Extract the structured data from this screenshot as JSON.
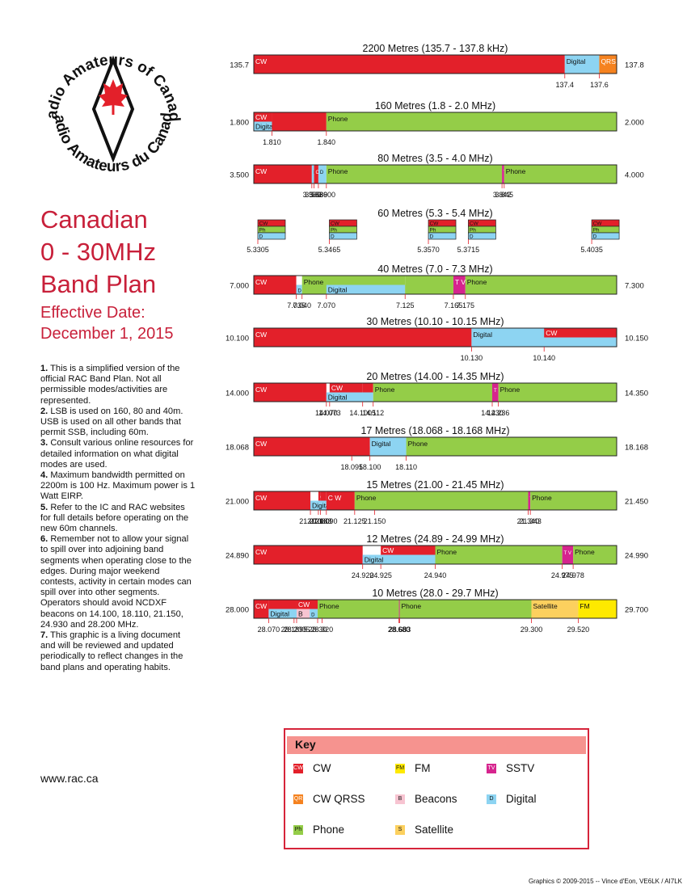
{
  "logo": {
    "top_text": "Radio Amateurs of Canada",
    "bottom_text": "Radio Amateurs du Canada"
  },
  "title_lines": [
    "Canadian",
    "0 - 30MHz",
    "Band Plan"
  ],
  "effective_lines": [
    "Effective Date:",
    "December 1, 2015"
  ],
  "notes": [
    {
      "num": "1.",
      "text": "This is a simplified version of the official RAC Band Plan.  Not all permissible modes/activities are represented."
    },
    {
      "num": "2.",
      "text": "LSB is used on 160, 80 and 40m. USB is used on all other bands that permit SSB, including 60m."
    },
    {
      "num": "3.",
      "text": "Consult various online resources for detailed information on what digital modes are used."
    },
    {
      "num": "4.",
      "text": "Maximum bandwidth permitted on 2200m is 100 Hz.  Maximum power is 1 Watt EIRP."
    },
    {
      "num": "5.",
      "text": "Refer to the IC and RAC websites for full details before operating on the new 60m channels."
    },
    {
      "num": "6.",
      "text": "Remember not to allow your signal to spill over into adjoining band segments when operating close to the edges.  During major weekend contests, activity in certain modes can spill over into other segments.  Operators should avoid NCDXF beacons on 14.100, 18.110, 21.150, 24.930 and 28.200 MHz."
    },
    {
      "num": "7.",
      "text": "This graphic is a living document and will be reviewed and updated periodically to reflect changes in the band plans and operating habits."
    }
  ],
  "website": "www.rac.ca",
  "credit": "Graphics © 2009-2015 -- Vince d'Eon, VE6LK / AI7LK",
  "colors": {
    "cw": "#e3202a",
    "phone": "#94cd48",
    "digital": "#8dd4f2",
    "qrss": "#f5821f",
    "fm": "#fee900",
    "sstv": "#d6248e",
    "beacon": "#f7c4d1",
    "sat": "#fcd05e",
    "brand": "#c8203a"
  },
  "key": {
    "title": "Key",
    "items": [
      {
        "label": "CW",
        "abbr": "CW",
        "mode": "cw"
      },
      {
        "label": "FM",
        "abbr": "FM",
        "mode": "fm"
      },
      {
        "label": "SSTV",
        "abbr": "TV",
        "mode": "sstv"
      },
      {
        "label": "CW QRSS",
        "abbr": "QR",
        "mode": "qrss"
      },
      {
        "label": "Beacons",
        "abbr": "B",
        "mode": "beacon"
      },
      {
        "label": "Digital",
        "abbr": "D",
        "mode": "digital"
      },
      {
        "label": "Phone",
        "abbr": "Ph",
        "mode": "phone"
      },
      {
        "label": "Satellite",
        "abbr": "S",
        "mode": "sat"
      }
    ]
  },
  "bands": [
    {
      "title": "2200 Metres (135.7 - 137.8 kHz)",
      "start": "135.7",
      "end": "137.8",
      "segments": [
        {
          "lo": 0,
          "hi": 0.857,
          "mode": "cw",
          "label": "CW"
        },
        {
          "lo": 0.857,
          "hi": 0.952,
          "mode": "digital",
          "label": "Digital"
        },
        {
          "lo": 0.952,
          "hi": 1,
          "mode": "qrss",
          "label": "QRSS"
        }
      ],
      "ticks": [
        {
          "f": 0.857,
          "label": "137.4"
        },
        {
          "f": 0.952,
          "label": "137.6"
        }
      ]
    },
    {
      "title": "160 Metres (1.8 - 2.0 MHz)",
      "start": "1.800",
      "end": "2.000",
      "segments": [
        {
          "lo": 0,
          "hi": 0.05,
          "mode": "cw",
          "label": "CW",
          "row": "top"
        },
        {
          "lo": 0,
          "hi": 0.05,
          "mode": "digital",
          "label": "Digital",
          "row": "bottom"
        },
        {
          "lo": 0.05,
          "hi": 0.2,
          "mode": "cw",
          "label": ""
        },
        {
          "lo": 0.2,
          "hi": 1,
          "mode": "phone",
          "label": "Phone"
        }
      ],
      "ticks": [
        {
          "f": 0.05,
          "label": "1.810"
        },
        {
          "f": 0.2,
          "label": "1.840"
        }
      ]
    },
    {
      "title": "80 Metres (3.5 - 4.0 MHz)",
      "start": "3.500",
      "end": "4.000",
      "segments": [
        {
          "lo": 0,
          "hi": 0.16,
          "mode": "cw",
          "label": "CW"
        },
        {
          "lo": 0.16,
          "hi": 0.166,
          "mode": "digital",
          "label": "D"
        },
        {
          "lo": 0.166,
          "hi": 0.178,
          "mode": "cw",
          "label": "C W"
        },
        {
          "lo": 0.178,
          "hi": 0.2,
          "mode": "digital",
          "label": "D"
        },
        {
          "lo": 0.2,
          "hi": 0.684,
          "mode": "phone",
          "label": "Phone"
        },
        {
          "lo": 0.684,
          "hi": 0.69,
          "mode": "sstv",
          "label": "T V"
        },
        {
          "lo": 0.69,
          "hi": 1,
          "mode": "phone",
          "label": "Phone"
        }
      ],
      "ticks": [
        {
          "f": 0.16,
          "label": "3.580"
        },
        {
          "f": 0.166,
          "label": "3.583"
        },
        {
          "f": 0.178,
          "label": "3.589"
        },
        {
          "f": 0.2,
          "label": "3.600"
        },
        {
          "f": 0.684,
          "label": "3.842"
        },
        {
          "f": 0.69,
          "label": "3.845"
        }
      ]
    },
    {
      "title": "60 Metres (5.3 - 5.4 MHz)",
      "channels": [
        {
          "f": 0.0,
          "label": "5.3305"
        },
        {
          "f": 0.197,
          "label": "5.3465"
        },
        {
          "f": 0.47,
          "label": "5.3570"
        },
        {
          "f": 0.58,
          "label": "5.3715"
        },
        {
          "f": 0.92,
          "label": "5.4035"
        }
      ],
      "channel_rows": [
        "CW",
        "Ph",
        "D"
      ]
    },
    {
      "title": "40 Metres (7.0 - 7.3 MHz)",
      "start": "7.000",
      "end": "7.300",
      "segments": [
        {
          "lo": 0,
          "hi": 0.117,
          "mode": "cw",
          "label": "CW"
        },
        {
          "lo": 0.117,
          "hi": 0.133,
          "mode": "digital",
          "label": "D",
          "row": "bottom"
        },
        {
          "lo": 0.133,
          "hi": 0.417,
          "mode": "phone",
          "label": "Phone"
        },
        {
          "lo": 0.2,
          "hi": 0.417,
          "mode": "digital",
          "label": "Digital",
          "row": "bottom"
        },
        {
          "lo": 0.55,
          "hi": 0.583,
          "mode": "sstv",
          "label": "T V"
        },
        {
          "lo": 0.583,
          "hi": 1,
          "mode": "phone",
          "label": "Phone"
        },
        {
          "lo": 0.417,
          "hi": 0.55,
          "mode": "phone",
          "label": ""
        }
      ],
      "ticks": [
        {
          "f": 0.117,
          "label": "7.035"
        },
        {
          "f": 0.133,
          "label": "7.040"
        },
        {
          "f": 0.2,
          "label": "7.070"
        },
        {
          "f": 0.417,
          "label": "7.125"
        },
        {
          "f": 0.55,
          "label": "7.165"
        },
        {
          "f": 0.583,
          "label": "7.175"
        }
      ]
    },
    {
      "title": "30 Metres (10.10 - 10.15 MHz)",
      "start": "10.100",
      "end": "10.150",
      "segments": [
        {
          "lo": 0,
          "hi": 0.6,
          "mode": "cw",
          "label": "CW"
        },
        {
          "lo": 0.6,
          "hi": 1,
          "mode": "digital",
          "label": "Digital"
        },
        {
          "lo": 0.8,
          "hi": 1,
          "mode": "cw",
          "label": "CW",
          "row": "top"
        }
      ],
      "ticks": [
        {
          "f": 0.6,
          "label": "10.130"
        },
        {
          "f": 0.8,
          "label": "10.140"
        }
      ]
    },
    {
      "title": "20 Metres (14.00 - 14.35 MHz)",
      "start": "14.000",
      "end": "14.350",
      "segments": [
        {
          "lo": 0,
          "hi": 0.2,
          "mode": "cw",
          "label": "CW"
        },
        {
          "lo": 0.2,
          "hi": 0.329,
          "mode": "digital",
          "label": "Digital",
          "row": "bottom"
        },
        {
          "lo": 0.209,
          "hi": 0.3,
          "mode": "cw",
          "label": "CW",
          "row": "top"
        },
        {
          "lo": 0.3,
          "hi": 0.329,
          "mode": "cw",
          "label": "",
          "row": "top"
        },
        {
          "lo": 0.329,
          "hi": 0.657,
          "mode": "phone",
          "label": "Phone"
        },
        {
          "lo": 0.657,
          "hi": 0.674,
          "mode": "sstv",
          "label": "T V"
        },
        {
          "lo": 0.674,
          "hi": 1,
          "mode": "phone",
          "label": "Phone"
        }
      ],
      "ticks": [
        {
          "f": 0.2,
          "label": "14.070"
        },
        {
          "f": 0.209,
          "label": "14.073"
        },
        {
          "f": 0.3,
          "label": "14.1005"
        },
        {
          "f": 0.329,
          "label": "14.112"
        },
        {
          "f": 0.657,
          "label": "14.230"
        },
        {
          "f": 0.674,
          "label": "14.236"
        }
      ]
    },
    {
      "title": "17 Metres (18.068 - 18.168 MHz)",
      "start": "18.068",
      "end": "18.168",
      "segments": [
        {
          "lo": 0,
          "hi": 0.32,
          "mode": "cw",
          "label": "CW"
        },
        {
          "lo": 0.27,
          "hi": 0.32,
          "mode": "cw",
          "label": "",
          "row": "bottom"
        },
        {
          "lo": 0.32,
          "hi": 0.42,
          "mode": "digital",
          "label": "Digital"
        },
        {
          "lo": 0.42,
          "hi": 1,
          "mode": "phone",
          "label": "Phone"
        }
      ],
      "ticks": [
        {
          "f": 0.27,
          "label": "18.095"
        },
        {
          "f": 0.32,
          "label": "18.100"
        },
        {
          "f": 0.42,
          "label": "18.110"
        }
      ]
    },
    {
      "title": "15 Metres (21.00 - 21.45 MHz)",
      "start": "21.000",
      "end": "21.450",
      "segments": [
        {
          "lo": 0,
          "hi": 0.156,
          "mode": "cw",
          "label": "CW"
        },
        {
          "lo": 0.156,
          "hi": 0.2,
          "mode": "digital",
          "label": "Digital",
          "row": "bottom"
        },
        {
          "lo": 0.178,
          "hi": 0.184,
          "mode": "cw",
          "label": "C",
          "row": "top"
        },
        {
          "lo": 0.184,
          "hi": 0.2,
          "mode": "cw",
          "label": "",
          "row": "top"
        },
        {
          "lo": 0.2,
          "hi": 0.278,
          "mode": "cw",
          "label": "C W"
        },
        {
          "lo": 0.278,
          "hi": 0.756,
          "mode": "phone",
          "label": "Phone"
        },
        {
          "lo": 0.756,
          "hi": 0.762,
          "mode": "sstv",
          "label": "T V"
        },
        {
          "lo": 0.762,
          "hi": 1,
          "mode": "phone",
          "label": "Phone"
        }
      ],
      "ticks": [
        {
          "f": 0.156,
          "label": "21.070"
        },
        {
          "f": 0.178,
          "label": "21.080"
        },
        {
          "f": 0.184,
          "label": "21.083"
        },
        {
          "f": 0.2,
          "label": "21.090"
        },
        {
          "f": 0.278,
          "label": "21.125"
        },
        {
          "f": 0.333,
          "label": "21.150"
        },
        {
          "f": 0.756,
          "label": "21.340"
        },
        {
          "f": 0.762,
          "label": "21.343"
        }
      ]
    },
    {
      "title": "12 Metres (24.89 - 24.99 MHz)",
      "start": "24.890",
      "end": "24.990",
      "segments": [
        {
          "lo": 0,
          "hi": 0.3,
          "mode": "cw",
          "label": "CW"
        },
        {
          "lo": 0.3,
          "hi": 0.5,
          "mode": "digital",
          "label": "Digital",
          "row": "bottom"
        },
        {
          "lo": 0.35,
          "hi": 0.5,
          "mode": "cw",
          "label": "CW",
          "row": "top"
        },
        {
          "lo": 0.5,
          "hi": 0.85,
          "mode": "phone",
          "label": "Phone"
        },
        {
          "lo": 0.85,
          "hi": 0.88,
          "mode": "sstv",
          "label": "T V"
        },
        {
          "lo": 0.88,
          "hi": 1,
          "mode": "phone",
          "label": "Phone"
        }
      ],
      "ticks": [
        {
          "f": 0.3,
          "label": "24.920"
        },
        {
          "f": 0.35,
          "label": "24.925"
        },
        {
          "f": 0.5,
          "label": "24.940"
        },
        {
          "f": 0.85,
          "label": "24.975"
        },
        {
          "f": 0.88,
          "label": "24.978"
        }
      ]
    },
    {
      "title": "10 Metres (28.0 - 29.7 MHz)",
      "start": "28.000",
      "end": "29.700",
      "segments": [
        {
          "lo": 0,
          "hi": 0.041,
          "mode": "cw",
          "label": "CW"
        },
        {
          "lo": 0.041,
          "hi": 0.118,
          "mode": "digital",
          "label": "Digital",
          "row": "bottom"
        },
        {
          "lo": 0.041,
          "hi": 0.118,
          "mode": "cw",
          "label": "",
          "row": "top"
        },
        {
          "lo": 0.118,
          "hi": 0.176,
          "mode": "cw",
          "label": "CW",
          "row": "top"
        },
        {
          "lo": 0.118,
          "hi": 0.154,
          "mode": "beacon",
          "label": "B",
          "row": "bottom"
        },
        {
          "lo": 0.154,
          "hi": 0.176,
          "mode": "digital",
          "label": "D",
          "row": "bottom"
        },
        {
          "lo": 0.176,
          "hi": 0.4,
          "mode": "phone",
          "label": "Phone"
        },
        {
          "lo": 0.4,
          "hi": 0.402,
          "mode": "sstv",
          "label": "T V"
        },
        {
          "lo": 0.402,
          "hi": 0.765,
          "mode": "phone",
          "label": "Phone"
        },
        {
          "lo": 0.765,
          "hi": 0.894,
          "mode": "sat",
          "label": "Satellite"
        },
        {
          "lo": 0.894,
          "hi": 1,
          "mode": "fm",
          "label": "FM"
        }
      ],
      "ticks": [
        {
          "f": 0.041,
          "label": "28.070"
        },
        {
          "f": 0.111,
          "label": "28.1895"
        },
        {
          "f": 0.118,
          "label": "28.2005"
        },
        {
          "f": 0.176,
          "label": "28.30"
        },
        {
          "f": 0.188,
          "label": "28.320"
        },
        {
          "f": 0.4,
          "label": "28.680"
        },
        {
          "f": 0.402,
          "label": "28.683"
        },
        {
          "f": 0.765,
          "label": "29.300"
        },
        {
          "f": 0.894,
          "label": "29.520"
        }
      ]
    }
  ]
}
